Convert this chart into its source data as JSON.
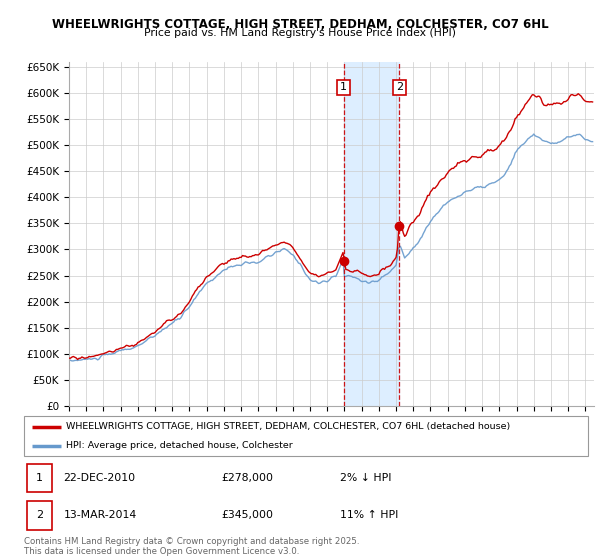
{
  "title1": "WHEELWRIGHTS COTTAGE, HIGH STREET, DEDHAM, COLCHESTER, CO7 6HL",
  "title2": "Price paid vs. HM Land Registry's House Price Index (HPI)",
  "ylim": [
    0,
    660000
  ],
  "yticks": [
    0,
    50000,
    100000,
    150000,
    200000,
    250000,
    300000,
    350000,
    400000,
    450000,
    500000,
    550000,
    600000,
    650000
  ],
  "line1_color": "#cc0000",
  "line2_color": "#6699cc",
  "shade_color": "#ddeeff",
  "marker_color": "#cc0000",
  "vline_color": "#cc0000",
  "grid_color": "#cccccc",
  "bg_color": "#ffffff",
  "legend1": "WHEELWRIGHTS COTTAGE, HIGH STREET, DEDHAM, COLCHESTER, CO7 6HL (detached house)",
  "legend2": "HPI: Average price, detached house, Colchester",
  "transaction1_label": "1",
  "transaction1_date": "22-DEC-2010",
  "transaction1_price": "£278,000",
  "transaction1_hpi": "2% ↓ HPI",
  "transaction1_x": 2010.96,
  "transaction1_y": 278000,
  "transaction2_label": "2",
  "transaction2_date": "13-MAR-2014",
  "transaction2_price": "£345,000",
  "transaction2_hpi": "11% ↑ HPI",
  "transaction2_x": 2014.2,
  "transaction2_y": 345000,
  "footnote": "Contains HM Land Registry data © Crown copyright and database right 2025.\nThis data is licensed under the Open Government Licence v3.0.",
  "xmin": 1995,
  "xmax": 2025.5,
  "figwidth": 6.0,
  "figheight": 5.6,
  "dpi": 100
}
